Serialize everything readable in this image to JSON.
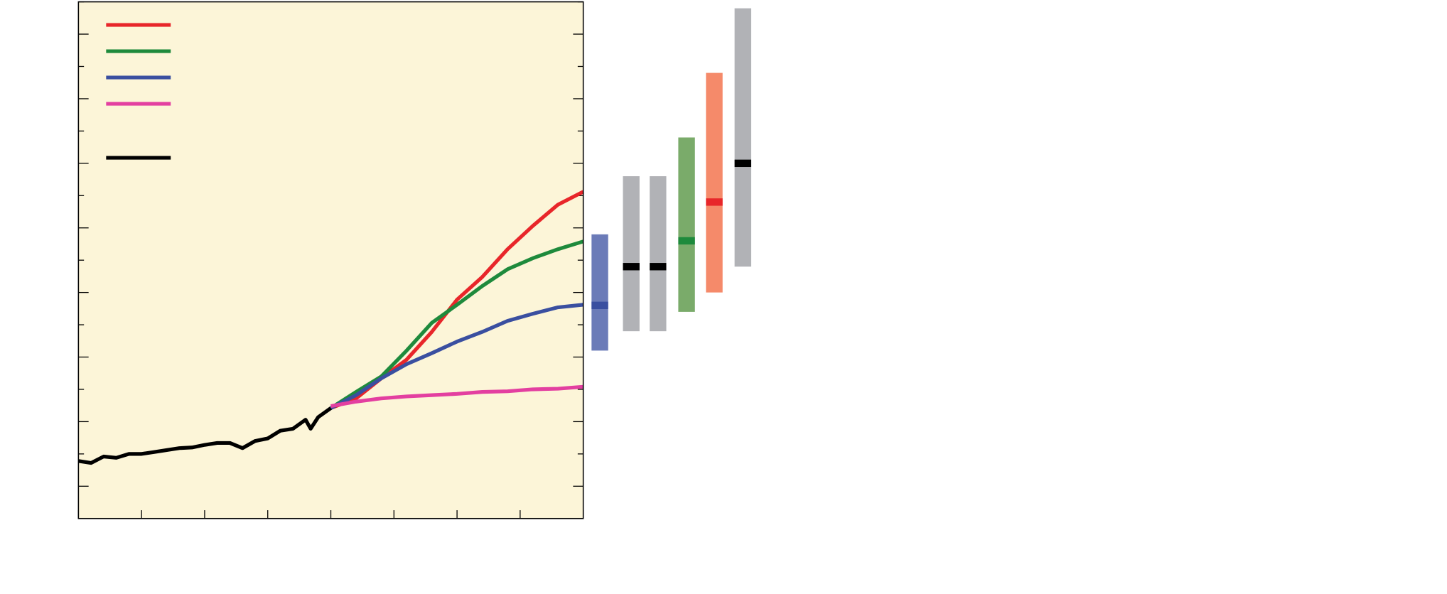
{
  "chart_data": [
    {
      "type": "line",
      "xlim": [
        1900,
        2100
      ],
      "xticks": [
        1900,
        1925,
        1950,
        1975,
        2000,
        2025,
        2050,
        2075,
        2100
      ],
      "ylim": [
        -1.5,
        6.5
      ],
      "yticks": [
        -1.5,
        -1,
        -0.5,
        0,
        0.5,
        1,
        1.5,
        2,
        2.5,
        3,
        3.5,
        4,
        4.5,
        5,
        5.5,
        6,
        6.5
      ],
      "background": "#fcf5d8",
      "series": [
        {
          "color": "#e8262a",
          "x": [
            2000,
            2010,
            2020,
            2030,
            2040,
            2050,
            2060,
            2070,
            2080,
            2090,
            2100
          ],
          "values": [
            0.21,
            0.36,
            0.67,
            0.96,
            1.39,
            1.89,
            2.24,
            2.67,
            3.03,
            3.36,
            3.56
          ]
        },
        {
          "color": "#1e8a3c",
          "x": [
            2000,
            2010,
            2020,
            2030,
            2040,
            2050,
            2060,
            2070,
            2080,
            2090,
            2100
          ],
          "values": [
            0.21,
            0.46,
            0.7,
            1.1,
            1.53,
            1.81,
            2.1,
            2.36,
            2.53,
            2.67,
            2.79
          ]
        },
        {
          "color": "#3a4fa0",
          "x": [
            2000,
            2010,
            2020,
            2030,
            2040,
            2050,
            2060,
            2070,
            2080,
            2090,
            2100
          ],
          "values": [
            0.21,
            0.41,
            0.67,
            0.89,
            1.06,
            1.24,
            1.39,
            1.56,
            1.67,
            1.77,
            1.81
          ]
        },
        {
          "color": "#e33fa0",
          "x": [
            2000,
            2010,
            2020,
            2030,
            2040,
            2050,
            2060,
            2070,
            2080,
            2090,
            2100
          ],
          "values": [
            0.24,
            0.31,
            0.36,
            0.39,
            0.41,
            0.43,
            0.46,
            0.47,
            0.5,
            0.51,
            0.54
          ]
        },
        {
          "color": "#000000",
          "x": [
            1900,
            1905,
            1910,
            1915,
            1920,
            1925,
            1930,
            1935,
            1940,
            1945,
            1950,
            1955,
            1960,
            1965,
            1970,
            1975,
            1980,
            1985,
            1990,
            1992,
            1995,
            2000
          ],
          "values": [
            -0.61,
            -0.64,
            -0.54,
            -0.56,
            -0.5,
            -0.5,
            -0.47,
            -0.44,
            -0.41,
            -0.4,
            -0.36,
            -0.33,
            -0.33,
            -0.41,
            -0.3,
            -0.26,
            -0.14,
            -0.11,
            0.03,
            -0.11,
            0.07,
            0.21
          ]
        }
      ]
    },
    {
      "type": "range",
      "ylim": [
        -1.5,
        6.5
      ],
      "categories": [
        null,
        null,
        null,
        null,
        null,
        null
      ],
      "values": [
        1.8,
        2.4,
        2.4,
        2.8,
        3.4,
        4.0
      ],
      "low": [
        1.1,
        1.4,
        1.4,
        1.7,
        2.0,
        2.4
      ],
      "high": [
        2.9,
        3.8,
        3.8,
        4.4,
        5.4,
        6.4
      ],
      "colors": [
        "#6b7bb8",
        "#b1b2b6",
        "#b1b2b6",
        "#7aab6a",
        "#f58a6a",
        "#b1b2b6"
      ],
      "mid_colors": [
        "#3a4fa0",
        "#000000",
        "#000000",
        "#1e8a3c",
        "#e8262a",
        "#000000"
      ]
    }
  ]
}
